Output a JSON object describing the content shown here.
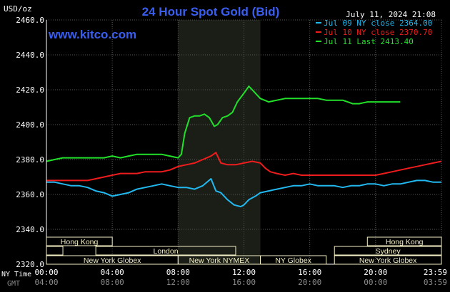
{
  "header": {
    "title": "24 Hour Spot Gold (Bid)",
    "units": "USD/oz",
    "timestamp": "July 11, 2024 21:08",
    "website": "www.kitco.com"
  },
  "colors": {
    "title": "#3a5ff0",
    "website": "#3a5ff0",
    "background": "#000000",
    "plot_bg": "#000000",
    "shade": "#1a1e17",
    "grid": "#585858",
    "axis_text": "#ffffff",
    "gmt_text": "#8a8a8a",
    "market_box": "#f4efc4"
  },
  "chart_data": {
    "type": "line",
    "title": "24 Hour Spot Gold (Bid)",
    "ylabel": "USD/oz",
    "xlabel": "",
    "ylim": [
      2320,
      2460
    ],
    "yticks": [
      "2460.0",
      "2440.0",
      "2420.0",
      "2400.0",
      "2380.0",
      "2360.0",
      "2340.0",
      "2320.0"
    ],
    "y_tick_values": [
      2460,
      2440,
      2420,
      2400,
      2380,
      2360,
      2340,
      2320
    ],
    "xlim": [
      0,
      24
    ],
    "x_tick_values": [
      0,
      4,
      8,
      12,
      16,
      20,
      24
    ],
    "xticks_ny": [
      "00:00",
      "04:00",
      "08:00",
      "12:00",
      "16:00",
      "20:00",
      "23:59"
    ],
    "xticks_gmt": [
      "04:00",
      "08:00",
      "12:00",
      "16:00",
      "20:00",
      "00:00",
      "03:59"
    ],
    "x_row_label_ny": "NY Time",
    "x_row_label_gmt": "GMT",
    "grid": true,
    "legend_position": "top-right",
    "shaded_period": [
      8,
      13
    ],
    "series": [
      {
        "name": "Jul 09 NY close 2364.00",
        "color": "#22b8f0",
        "points": [
          [
            0,
            2367
          ],
          [
            0.5,
            2367
          ],
          [
            1,
            2366
          ],
          [
            1.5,
            2365
          ],
          [
            2,
            2365
          ],
          [
            2.5,
            2364
          ],
          [
            3,
            2362
          ],
          [
            3.5,
            2361
          ],
          [
            4,
            2359
          ],
          [
            4.5,
            2360
          ],
          [
            5,
            2361
          ],
          [
            5.5,
            2363
          ],
          [
            6,
            2364
          ],
          [
            6.5,
            2365
          ],
          [
            7,
            2366
          ],
          [
            7.5,
            2365
          ],
          [
            8,
            2364
          ],
          [
            8.5,
            2364
          ],
          [
            9,
            2363
          ],
          [
            9.5,
            2365
          ],
          [
            10,
            2369
          ],
          [
            10.3,
            2362
          ],
          [
            10.6,
            2361
          ],
          [
            11,
            2357
          ],
          [
            11.4,
            2354
          ],
          [
            11.8,
            2353
          ],
          [
            12,
            2354
          ],
          [
            12.3,
            2357
          ],
          [
            12.7,
            2359
          ],
          [
            13,
            2361
          ],
          [
            13.5,
            2362
          ],
          [
            14,
            2363
          ],
          [
            14.5,
            2364
          ],
          [
            15,
            2365
          ],
          [
            15.5,
            2365
          ],
          [
            16,
            2366
          ],
          [
            16.5,
            2365
          ],
          [
            17,
            2365
          ],
          [
            17.5,
            2365
          ],
          [
            18,
            2364
          ],
          [
            18.5,
            2365
          ],
          [
            19,
            2365
          ],
          [
            19.5,
            2366
          ],
          [
            20,
            2366
          ],
          [
            20.5,
            2365
          ],
          [
            21,
            2366
          ],
          [
            21.5,
            2366
          ],
          [
            22,
            2367
          ],
          [
            22.5,
            2368
          ],
          [
            23,
            2368
          ],
          [
            23.5,
            2367
          ],
          [
            24,
            2367
          ]
        ]
      },
      {
        "name": "Jul 10 NY close 2370.70",
        "color": "#ee1c1c",
        "points": [
          [
            0,
            2368
          ],
          [
            0.5,
            2368
          ],
          [
            1,
            2368
          ],
          [
            1.5,
            2368
          ],
          [
            2,
            2368
          ],
          [
            2.5,
            2368
          ],
          [
            3,
            2369
          ],
          [
            3.5,
            2370
          ],
          [
            4,
            2371
          ],
          [
            4.5,
            2372
          ],
          [
            5,
            2372
          ],
          [
            5.5,
            2372
          ],
          [
            6,
            2373
          ],
          [
            6.5,
            2373
          ],
          [
            7,
            2373
          ],
          [
            7.5,
            2374
          ],
          [
            8,
            2376
          ],
          [
            8.5,
            2377
          ],
          [
            9,
            2378
          ],
          [
            9.5,
            2380
          ],
          [
            10,
            2382
          ],
          [
            10.3,
            2384
          ],
          [
            10.6,
            2378
          ],
          [
            11,
            2377
          ],
          [
            11.5,
            2377
          ],
          [
            12,
            2378
          ],
          [
            12.5,
            2379
          ],
          [
            13,
            2378
          ],
          [
            13.3,
            2375
          ],
          [
            13.6,
            2373
          ],
          [
            14,
            2372
          ],
          [
            14.5,
            2371
          ],
          [
            15,
            2372
          ],
          [
            15.5,
            2371
          ],
          [
            16,
            2371
          ],
          [
            16.5,
            2371
          ],
          [
            17,
            2371
          ],
          [
            17.5,
            2371
          ],
          [
            18,
            2371
          ],
          [
            18.5,
            2371
          ],
          [
            19,
            2371
          ],
          [
            19.5,
            2371
          ],
          [
            20,
            2371
          ],
          [
            20.5,
            2372
          ],
          [
            21,
            2373
          ],
          [
            21.5,
            2374
          ],
          [
            22,
            2375
          ],
          [
            22.5,
            2376
          ],
          [
            23,
            2377
          ],
          [
            23.5,
            2378
          ],
          [
            24,
            2379
          ]
        ]
      },
      {
        "name": "Jul 11 Last 2413.40",
        "color": "#22e02a",
        "points": [
          [
            0,
            2379
          ],
          [
            0.5,
            2380
          ],
          [
            1,
            2381
          ],
          [
            1.5,
            2381
          ],
          [
            2,
            2381
          ],
          [
            2.5,
            2381
          ],
          [
            3,
            2381
          ],
          [
            3.5,
            2381
          ],
          [
            4,
            2382
          ],
          [
            4.5,
            2381
          ],
          [
            5,
            2382
          ],
          [
            5.5,
            2383
          ],
          [
            6,
            2383
          ],
          [
            6.5,
            2383
          ],
          [
            7,
            2383
          ],
          [
            7.5,
            2382
          ],
          [
            8,
            2381
          ],
          [
            8.2,
            2383
          ],
          [
            8.4,
            2395
          ],
          [
            8.7,
            2404
          ],
          [
            9,
            2405
          ],
          [
            9.3,
            2405
          ],
          [
            9.6,
            2406
          ],
          [
            9.9,
            2404
          ],
          [
            10.2,
            2399
          ],
          [
            10.4,
            2400
          ],
          [
            10.7,
            2404
          ],
          [
            11,
            2405
          ],
          [
            11.3,
            2407
          ],
          [
            11.6,
            2413
          ],
          [
            12,
            2418
          ],
          [
            12.3,
            2422
          ],
          [
            12.6,
            2419
          ],
          [
            13,
            2415
          ],
          [
            13.5,
            2413
          ],
          [
            14,
            2414
          ],
          [
            14.5,
            2415
          ],
          [
            15,
            2415
          ],
          [
            15.5,
            2415
          ],
          [
            16,
            2415
          ],
          [
            16.5,
            2415
          ],
          [
            17,
            2414
          ],
          [
            17.5,
            2414
          ],
          [
            18,
            2414
          ],
          [
            18.3,
            2413
          ],
          [
            18.6,
            2412
          ],
          [
            19,
            2412
          ],
          [
            19.5,
            2413
          ],
          [
            20,
            2413
          ],
          [
            20.5,
            2413
          ],
          [
            21,
            2413
          ],
          [
            21.5,
            2413
          ]
        ]
      }
    ]
  },
  "markets": [
    {
      "label": "Hong Kong",
      "start": 0,
      "end": 4,
      "row": 0
    },
    {
      "label": "Hong Kong",
      "start": 19.5,
      "end": 24,
      "row": 0
    },
    {
      "label": "London",
      "start": 3,
      "end": 11.5,
      "row": 1
    },
    {
      "label": "Sydney",
      "start": 17.5,
      "end": 24,
      "row": 1
    },
    {
      "label": "",
      "start": 0,
      "end": 1,
      "row": 1
    },
    {
      "label": "New York Globex",
      "start": 0,
      "end": 8,
      "row": 2
    },
    {
      "label": "New York NYMEX",
      "start": 8,
      "end": 13,
      "row": 2
    },
    {
      "label": "NY Globex",
      "start": 13,
      "end": 17,
      "row": 2
    },
    {
      "label": "New York Globex",
      "start": 17.5,
      "end": 24,
      "row": 2
    }
  ]
}
